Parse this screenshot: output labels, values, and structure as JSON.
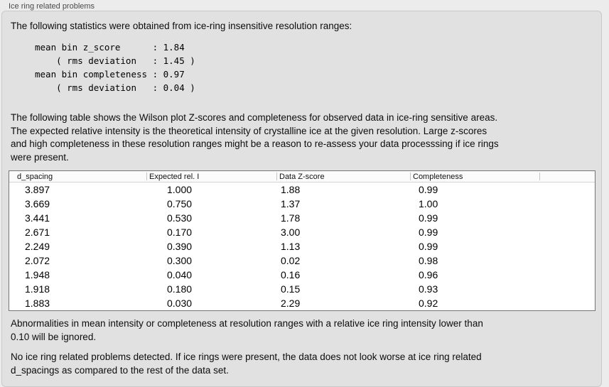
{
  "panel": {
    "title": "Ice ring related problems"
  },
  "intro": "The following statistics were obtained from ice-ring insensitive resolution ranges:",
  "stats": {
    "lines": [
      "mean bin z_score      : 1.84",
      "    ( rms deviation   : 1.45 )",
      "mean bin completeness : 0.97",
      "    ( rms deviation   : 0.04 )"
    ]
  },
  "description": {
    "lines": [
      "The following table shows the Wilson plot Z-scores and completeness for observed data in ice-ring sensitive areas.",
      "The expected relative intensity is the theoretical intensity of crystalline ice at the given resolution. Large z-scores",
      "and high completeness in these resolution ranges might be a reason to re-assess your data processsing if ice rings",
      "were present."
    ]
  },
  "table": {
    "columns": [
      "d_spacing",
      "Expected rel. I",
      "Data Z-score",
      "Completeness"
    ],
    "rows": [
      [
        "3.897",
        "1.000",
        "1.88",
        "0.99"
      ],
      [
        "3.669",
        "0.750",
        "1.37",
        "1.00"
      ],
      [
        "3.441",
        "0.530",
        "1.78",
        "0.99"
      ],
      [
        "2.671",
        "0.170",
        "3.00",
        "0.99"
      ],
      [
        "2.249",
        "0.390",
        "1.13",
        "0.99"
      ],
      [
        "2.072",
        "0.300",
        "0.02",
        "0.98"
      ],
      [
        "1.948",
        "0.040",
        "0.16",
        "0.96"
      ],
      [
        "1.918",
        "0.180",
        "0.15",
        "0.93"
      ],
      [
        "1.883",
        "0.030",
        "2.29",
        "0.92"
      ]
    ]
  },
  "notes": {
    "ignore": {
      "lines": [
        "Abnormalities in mean intensity or completeness at resolution ranges with a relative ice ring intensity lower than",
        "0.10 will be ignored."
      ]
    },
    "conclusion": {
      "lines": [
        "No ice ring related problems detected. If ice rings were present, the data does not look worse at ice ring related",
        "d_spacings as compared to the rest of the data set."
      ]
    }
  },
  "colors": {
    "window_bg": "#ececec",
    "panel_bg": "#e1e1e1",
    "table_bg": "#ffffff",
    "table_border": "#757575",
    "header_separator": "#c6c6c6",
    "title_text": "#4a4a4a"
  }
}
